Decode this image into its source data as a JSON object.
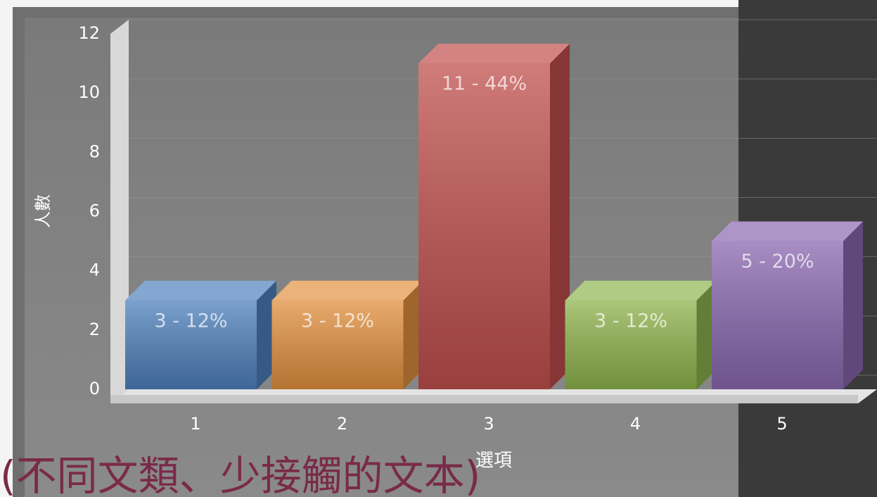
{
  "chart_data": {
    "type": "bar3d",
    "categories": [
      "1",
      "2",
      "3",
      "4",
      "5"
    ],
    "values": [
      3,
      3,
      11,
      3,
      5
    ],
    "value_labels": [
      "3 - 12%",
      "3 - 12%",
      "11 - 44%",
      "3 - 12%",
      "5 - 20%"
    ],
    "colors": [
      "#4f81bd",
      "#e3913f",
      "#c0504d",
      "#8fb54e",
      "#8a68b0"
    ],
    "ylabel": "人數",
    "xlabel": "選項",
    "ylim": [
      0,
      12
    ],
    "yticks": [
      0,
      2,
      4,
      6,
      8,
      10,
      12
    ],
    "grid": true,
    "annotation": "(不同文類、少接觸的文本)"
  }
}
